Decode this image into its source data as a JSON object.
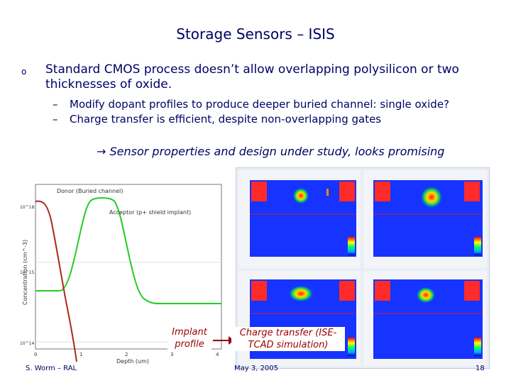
{
  "slide": {
    "title": "Storage Sensors – ISIS",
    "bullet_marker": "o",
    "main_bullet": "Standard CMOS process doesn’t allow overlapping polysilicon or two thicknesses of oxide.",
    "sub_bullets": [
      {
        "dash": "–",
        "text": "Modify dopant profiles to produce deeper buried channel: single oxide?"
      },
      {
        "dash": "–",
        "text": "Charge transfer is efficient, despite non-overlapping gates"
      }
    ],
    "conclusion": "Sensor properties and design under study, looks promising",
    "arrow_glyph": "→"
  },
  "doping_plot": {
    "ylabel": "Concentration (cm^-3)",
    "xlabel": "Depth (um)",
    "legend_donor": "Donor (Buried channel)",
    "legend_acceptor": "Acceptor (p+ shield implant)",
    "y_ticks": [
      "10^18",
      "10^15",
      "10^14"
    ],
    "x_ticks": [
      "0",
      "1",
      "2",
      "3",
      "4"
    ]
  },
  "captions": {
    "implant": "Implant profile",
    "charge_transfer": "Charge transfer (ISE-TCAD simulation)"
  },
  "footer": {
    "author": "S. Worm – RAL",
    "date": "May 3, 2005",
    "page": "18"
  },
  "colors": {
    "title": "#000066",
    "caption": "#990000",
    "donor_curve": "#aa2a1a",
    "acceptor_curve": "#22cc22"
  }
}
